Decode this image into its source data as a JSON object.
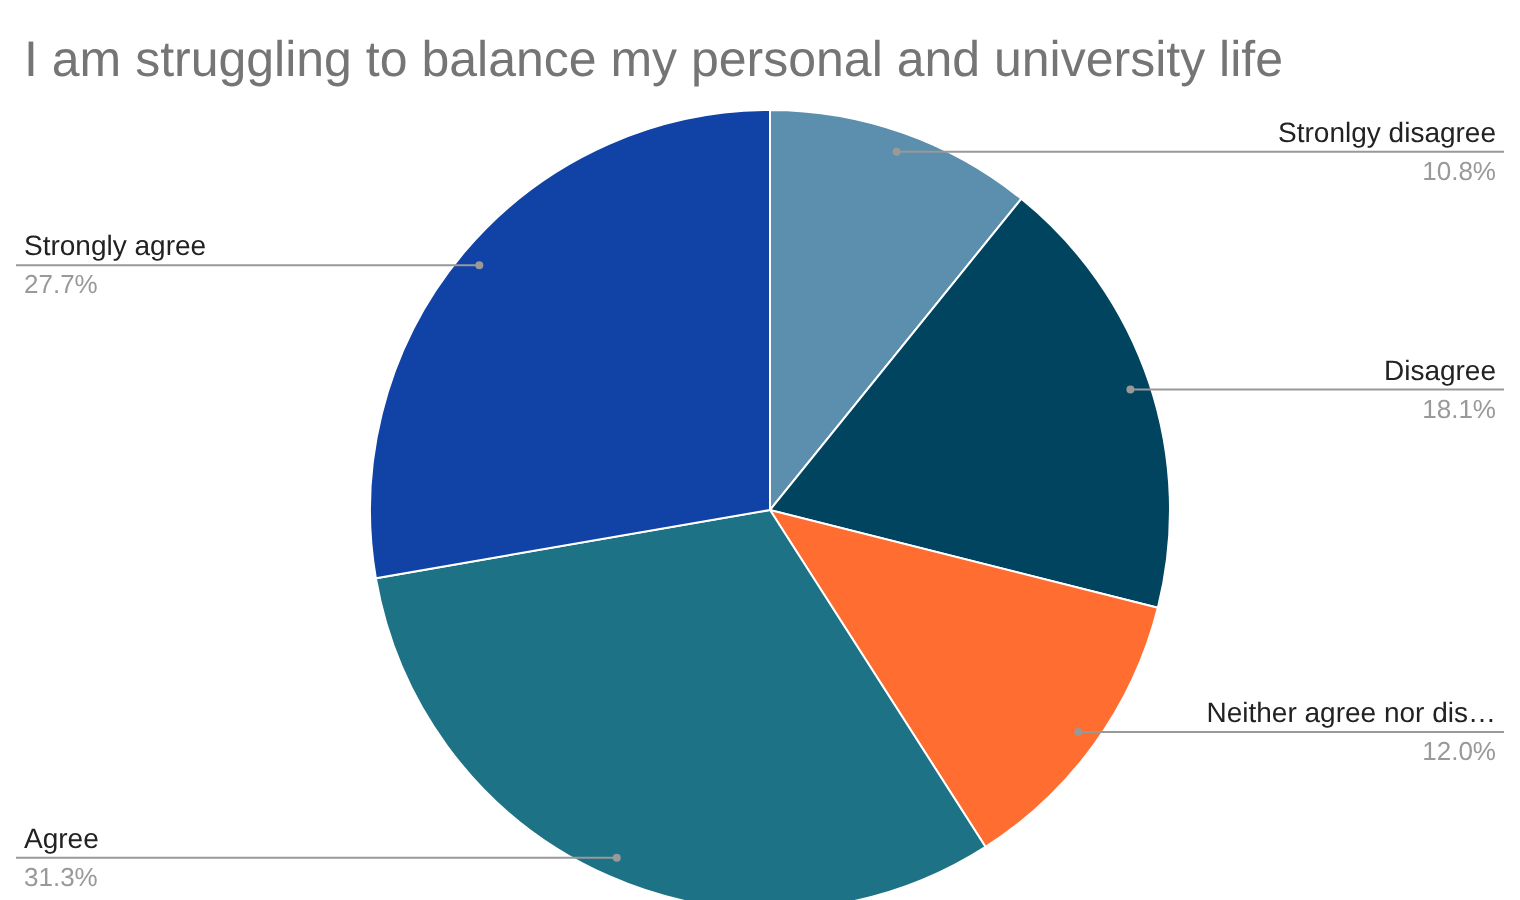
{
  "chart_data": {
    "type": "pie",
    "title": "I am struggling to balance my personal and university life",
    "categories": [
      "Stronlgy disagree",
      "Disagree",
      "Neither agree nor dis…",
      "Agree",
      "Strongly agree"
    ],
    "values": [
      10.8,
      18.1,
      12.0,
      31.3,
      27.7
    ],
    "value_labels": [
      "10.8%",
      "18.1%",
      "12.0%",
      "31.3%",
      "27.7%"
    ],
    "colors": [
      "#5b8fad",
      "#00445f",
      "#ff6d31",
      "#1e7285",
      "#1142a5"
    ]
  }
}
